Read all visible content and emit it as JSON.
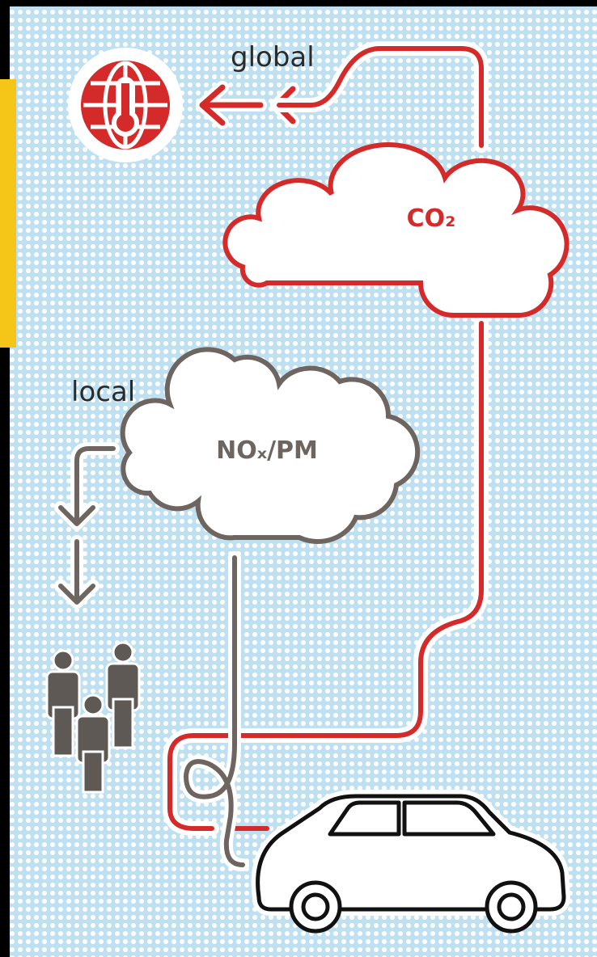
{
  "labels": {
    "global": "global",
    "co2": "CO₂",
    "local": "local",
    "nox_pm": "NOₓ/PM"
  }
}
